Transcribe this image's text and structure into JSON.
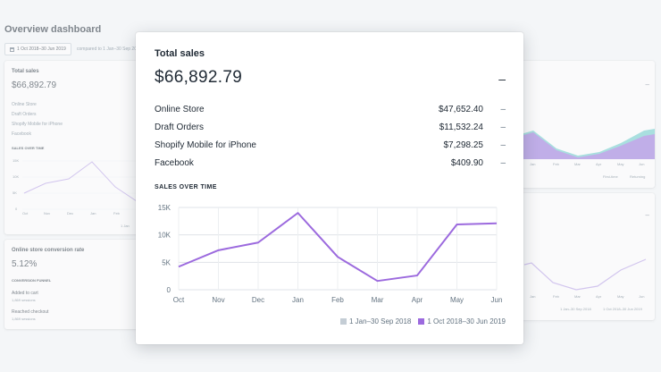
{
  "page": {
    "title": "Overview dashboard",
    "date_range": "1 Oct 2018–30 Jun 2019",
    "compare_text": "compared to 1 Jan–30 Sep 2018"
  },
  "background": {
    "sales_card": {
      "title": "Total sales",
      "total": "$66,892.79",
      "channels": [
        "Online Store",
        "Draft Orders",
        "Shopify Mobile for iPhone",
        "Facebook"
      ],
      "chart_label": "SALES OVER TIME",
      "y_ticks": [
        "15K",
        "10K",
        "5K",
        "0"
      ],
      "x_ticks": [
        "Oct",
        "Nov",
        "Dec",
        "Jan",
        "Feb",
        "Mar"
      ],
      "legend_partial": "1 Jan"
    },
    "conversion_card": {
      "title": "Online store conversion rate",
      "value": "5.12%",
      "funnel_label": "CONVERSION FUNNEL",
      "steps": [
        {
          "label": "Added to cart",
          "sessions": "1,869 sessions"
        },
        {
          "label": "Reached checkout",
          "sessions": "1,869 sessions"
        }
      ]
    },
    "right_top_card": {
      "x_ticks": [
        "Jan",
        "Feb",
        "Mar",
        "Apr",
        "May",
        "Jun"
      ],
      "legend": [
        "First-time",
        "Returning"
      ]
    },
    "right_bottom_card": {
      "x_ticks": [
        "Jan",
        "Feb",
        "Mar",
        "Apr",
        "May",
        "Jun"
      ],
      "legend": [
        "1 Jan–30 Sep 2018",
        "1 Oct 2018–30 Jun 2019"
      ]
    }
  },
  "modal": {
    "title": "Total sales",
    "total": "$66,892.79",
    "total_change": "–",
    "rows": [
      {
        "label": "Online Store",
        "value": "$47,652.40",
        "change": "–"
      },
      {
        "label": "Draft Orders",
        "value": "$11,532.24",
        "change": "–"
      },
      {
        "label": "Shopify Mobile for iPhone",
        "value": "$7,298.25",
        "change": "–"
      },
      {
        "label": "Facebook",
        "value": "$409.90",
        "change": "–"
      }
    ],
    "chart_title": "SALES OVER TIME",
    "legend": [
      {
        "label": "1 Jan–30 Sep 2018",
        "color": "#c4cdd5"
      },
      {
        "label": "1 Oct 2018–30 Jun 2019",
        "color": "#9c6ade"
      }
    ]
  },
  "colors": {
    "series": "#9c6ade",
    "series_bg": "#c4cdd5",
    "returning": "#47c1bf",
    "grid": "#dfe3e8"
  },
  "chart_data": {
    "type": "line",
    "title": "SALES OVER TIME",
    "categories": [
      "Oct",
      "Nov",
      "Dec",
      "Jan",
      "Feb",
      "Mar",
      "Apr",
      "May",
      "Jun"
    ],
    "series": [
      {
        "name": "1 Oct 2018–30 Jun 2019",
        "values": [
          4200,
          7200,
          8600,
          14000,
          6000,
          1600,
          2600,
          11900,
          12100
        ]
      }
    ],
    "y_ticks": [
      "15K",
      "10K",
      "5K",
      "0"
    ],
    "ylim": [
      0,
      15000
    ],
    "grid": true,
    "legend_placement": "bottom-right"
  }
}
